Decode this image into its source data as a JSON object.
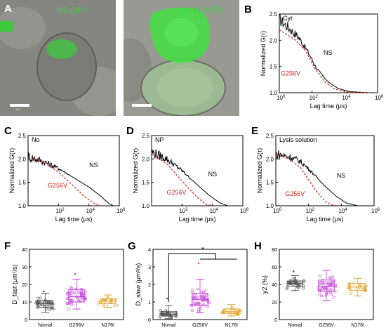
{
  "panels": {
    "A": "A",
    "B": "B",
    "C": "C",
    "D": "D",
    "E": "E",
    "F": "F",
    "G": "G",
    "H": "H"
  },
  "images": [
    {
      "label": "NS-GFP",
      "scale_text": "5μm",
      "colors": {
        "cell": "#3cc83c",
        "bg": "#8a8a86"
      }
    },
    {
      "label": "G256V-GFP",
      "colors": {
        "cell": "#42e042",
        "bg": "#9a9a94"
      }
    }
  ],
  "fcs_common": {
    "ylabel": "Normalized G(τ)",
    "xlabel": "Lag time (μs)",
    "yticks": [
      "1.0",
      "1.5",
      "2.0",
      "2.5"
    ],
    "ns_label": "NS",
    "mut_label": "G256V",
    "colors": {
      "ns": "#000000",
      "mut": "#cc2a1a"
    }
  },
  "fcs_panels": [
    {
      "id": "B",
      "title": "Cyt",
      "xmin": 0,
      "xmax": 6,
      "x_exps": [
        "0",
        "2",
        "4",
        "6"
      ],
      "ns_curve": [
        [
          0.0,
          2.4
        ],
        [
          0.7,
          2.2
        ],
        [
          1.2,
          2.05
        ],
        [
          1.8,
          1.75
        ],
        [
          2.3,
          1.45
        ],
        [
          3.0,
          1.2
        ],
        [
          3.6,
          1.08
        ],
        [
          4.3,
          1.02
        ],
        [
          5.5,
          1.0
        ]
      ],
      "mut_curve": [
        [
          0.0,
          2.2
        ],
        [
          1.0,
          2.0
        ],
        [
          1.6,
          1.8
        ],
        [
          2.2,
          1.45
        ],
        [
          2.8,
          1.2
        ],
        [
          3.4,
          1.07
        ],
        [
          4.2,
          1.01
        ],
        [
          5.5,
          1.0
        ]
      ]
    },
    {
      "id": "C",
      "title": "No",
      "xmin": 0,
      "xmax": 6,
      "x_exps": [
        "2",
        "4",
        "6"
      ],
      "ns_curve": [
        [
          0.0,
          2.05
        ],
        [
          1.0,
          1.95
        ],
        [
          2.0,
          1.8
        ],
        [
          3.0,
          1.6
        ],
        [
          4.0,
          1.4
        ],
        [
          4.8,
          1.2
        ],
        [
          5.3,
          1.05
        ],
        [
          5.6,
          1.0
        ]
      ],
      "mut_curve": [
        [
          0.0,
          2.05
        ],
        [
          1.0,
          1.93
        ],
        [
          2.0,
          1.72
        ],
        [
          3.0,
          1.42
        ],
        [
          3.7,
          1.2
        ],
        [
          4.3,
          1.06
        ],
        [
          4.8,
          1.0
        ]
      ]
    },
    {
      "id": "D",
      "title": "NP",
      "xmin": 0,
      "xmax": 6,
      "x_exps": [
        "2",
        "4",
        "6"
      ],
      "ns_curve": [
        [
          0.0,
          2.15
        ],
        [
          1.0,
          2.0
        ],
        [
          2.0,
          1.75
        ],
        [
          3.0,
          1.45
        ],
        [
          3.8,
          1.22
        ],
        [
          4.5,
          1.06
        ],
        [
          5.0,
          1.0
        ]
      ],
      "mut_curve": [
        [
          0.0,
          2.1
        ],
        [
          1.0,
          1.9
        ],
        [
          1.8,
          1.6
        ],
        [
          2.5,
          1.35
        ],
        [
          3.1,
          1.15
        ],
        [
          3.6,
          1.03
        ],
        [
          4.0,
          1.0
        ]
      ]
    },
    {
      "id": "E",
      "title": "Lysis solution",
      "xmin": 0,
      "xmax": 6,
      "x_exps": [
        "0",
        "2",
        "4",
        "6"
      ],
      "ns_curve": [
        [
          0.0,
          2.1
        ],
        [
          0.8,
          2.05
        ],
        [
          1.5,
          1.95
        ],
        [
          2.2,
          1.72
        ],
        [
          3.0,
          1.42
        ],
        [
          3.7,
          1.2
        ],
        [
          4.3,
          1.06
        ],
        [
          5.0,
          1.0
        ]
      ],
      "mut_curve": [
        [
          0.0,
          2.1
        ],
        [
          0.8,
          2.0
        ],
        [
          1.5,
          1.82
        ],
        [
          2.0,
          1.55
        ],
        [
          2.5,
          1.3
        ],
        [
          3.0,
          1.1
        ],
        [
          3.4,
          1.02
        ],
        [
          3.8,
          1.0
        ]
      ]
    }
  ],
  "box_common": {
    "categories": [
      "Nomal",
      "G256V",
      "N176I"
    ],
    "colors": [
      "#555555",
      "#c040d8",
      "#e0a020"
    ]
  },
  "box_panels": [
    {
      "id": "F",
      "ylabel": "D_fast (μm²/s)",
      "ylim": [
        0,
        40
      ],
      "yticks": [
        "0",
        "10",
        "20",
        "30",
        "40"
      ],
      "stats": [
        [
          4,
          7,
          9,
          11,
          15
        ],
        [
          6,
          10,
          13,
          17,
          23
        ],
        [
          7,
          9,
          10.5,
          12,
          14
        ]
      ],
      "outliers": [
        [
          16
        ],
        [
          26
        ],
        []
      ]
    },
    {
      "id": "G",
      "ylabel": "D_slow (μm²/s)",
      "ylim": [
        0,
        4
      ],
      "yticks": [
        "0",
        "1",
        "2",
        "3",
        "4"
      ],
      "stats": [
        [
          0.05,
          0.2,
          0.3,
          0.45,
          0.8
        ],
        [
          0.4,
          0.8,
          1.15,
          1.5,
          2.3
        ],
        [
          0.2,
          0.35,
          0.45,
          0.6,
          0.85
        ]
      ],
      "outliers": [
        [
          1.2
        ],
        [
          3.2
        ],
        []
      ],
      "sig": "*"
    },
    {
      "id": "H",
      "ylabel": "y2 (%)",
      "ylim": [
        0,
        80
      ],
      "yticks": [
        "0",
        "20",
        "40",
        "60",
        "80"
      ],
      "stats": [
        [
          33,
          38,
          41,
          44,
          50
        ],
        [
          22,
          32,
          38,
          45,
          56
        ],
        [
          27,
          33,
          37,
          41,
          47
        ]
      ],
      "outliers": [
        [
          55
        ],
        [],
        []
      ]
    }
  ]
}
